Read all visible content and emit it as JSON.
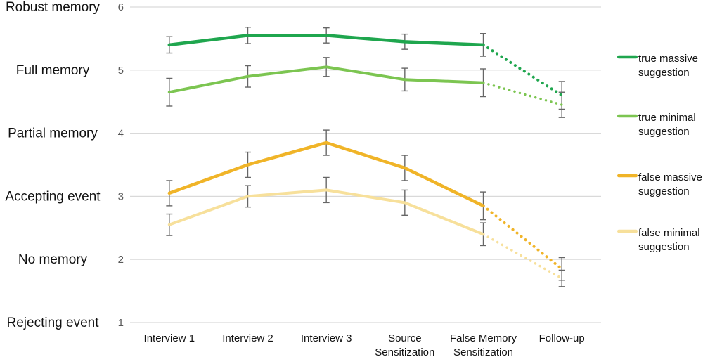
{
  "figure": {
    "background": "#ffffff",
    "gridline_color": "#d9d9d9",
    "error_bar_color": "#666666",
    "axis_number_color": "#595959",
    "label_text_color": "#111111"
  },
  "chart_data": {
    "type": "line",
    "title": "",
    "xlabel": "",
    "ylabel": "",
    "grid": true,
    "legend_position": "right",
    "categories": [
      "Interview 1",
      "Interview 2",
      "Interview 3",
      "Source Sensitization",
      "False Memory Sensitization",
      "Follow-up"
    ],
    "x_tick_lines": [
      [
        "Interview 1"
      ],
      [
        "Interview 2"
      ],
      [
        "Interview 3"
      ],
      [
        "Source",
        "Sensitization"
      ],
      [
        "False Memory",
        "Sensitization"
      ],
      [
        "Follow-up"
      ]
    ],
    "y_axis": {
      "min": 1,
      "max": 6,
      "ticks": [
        1,
        2,
        3,
        4,
        5,
        6
      ],
      "scale_labels": [
        {
          "value": 6,
          "label": "Robust memory"
        },
        {
          "value": 5,
          "label": "Full memory"
        },
        {
          "value": 4,
          "label": "Partial memory"
        },
        {
          "value": 3,
          "label": "Accepting event"
        },
        {
          "value": 2,
          "label": "No memory"
        },
        {
          "value": 1,
          "label": "Rejecting event"
        }
      ]
    },
    "series": [
      {
        "name": "true massive suggestion",
        "legend_lines": [
          "true massive",
          "suggestion"
        ],
        "color": "#1fa64e",
        "line_width": 4.5,
        "values": [
          5.4,
          5.55,
          5.55,
          5.45,
          5.4,
          4.6
        ],
        "errors": [
          0.13,
          0.13,
          0.12,
          0.12,
          0.18,
          0.22
        ],
        "dashed_from": 4
      },
      {
        "name": "true minimal suggestion",
        "legend_lines": [
          "true minimal",
          "suggestion"
        ],
        "color": "#7cc551",
        "line_width": 4,
        "values": [
          4.65,
          4.9,
          5.05,
          4.85,
          4.8,
          4.45
        ],
        "errors": [
          0.22,
          0.17,
          0.15,
          0.18,
          0.22,
          0.2
        ],
        "dashed_from": 4
      },
      {
        "name": "false massive suggestion",
        "legend_lines": [
          "false massive",
          "suggestion"
        ],
        "color": "#f0b428",
        "line_width": 4.5,
        "values": [
          3.05,
          3.5,
          3.85,
          3.45,
          2.85,
          1.85
        ],
        "errors": [
          0.2,
          0.2,
          0.2,
          0.2,
          0.22,
          0.18
        ],
        "dashed_from": 4
      },
      {
        "name": "false minimal suggestion",
        "legend_lines": [
          "false minimal",
          "suggestion"
        ],
        "color": "#f7e09b",
        "line_width": 4,
        "values": [
          2.55,
          3.0,
          3.1,
          2.9,
          2.4,
          1.7
        ],
        "errors": [
          0.17,
          0.17,
          0.2,
          0.2,
          0.18,
          0.13
        ],
        "dashed_from": 4
      }
    ]
  }
}
